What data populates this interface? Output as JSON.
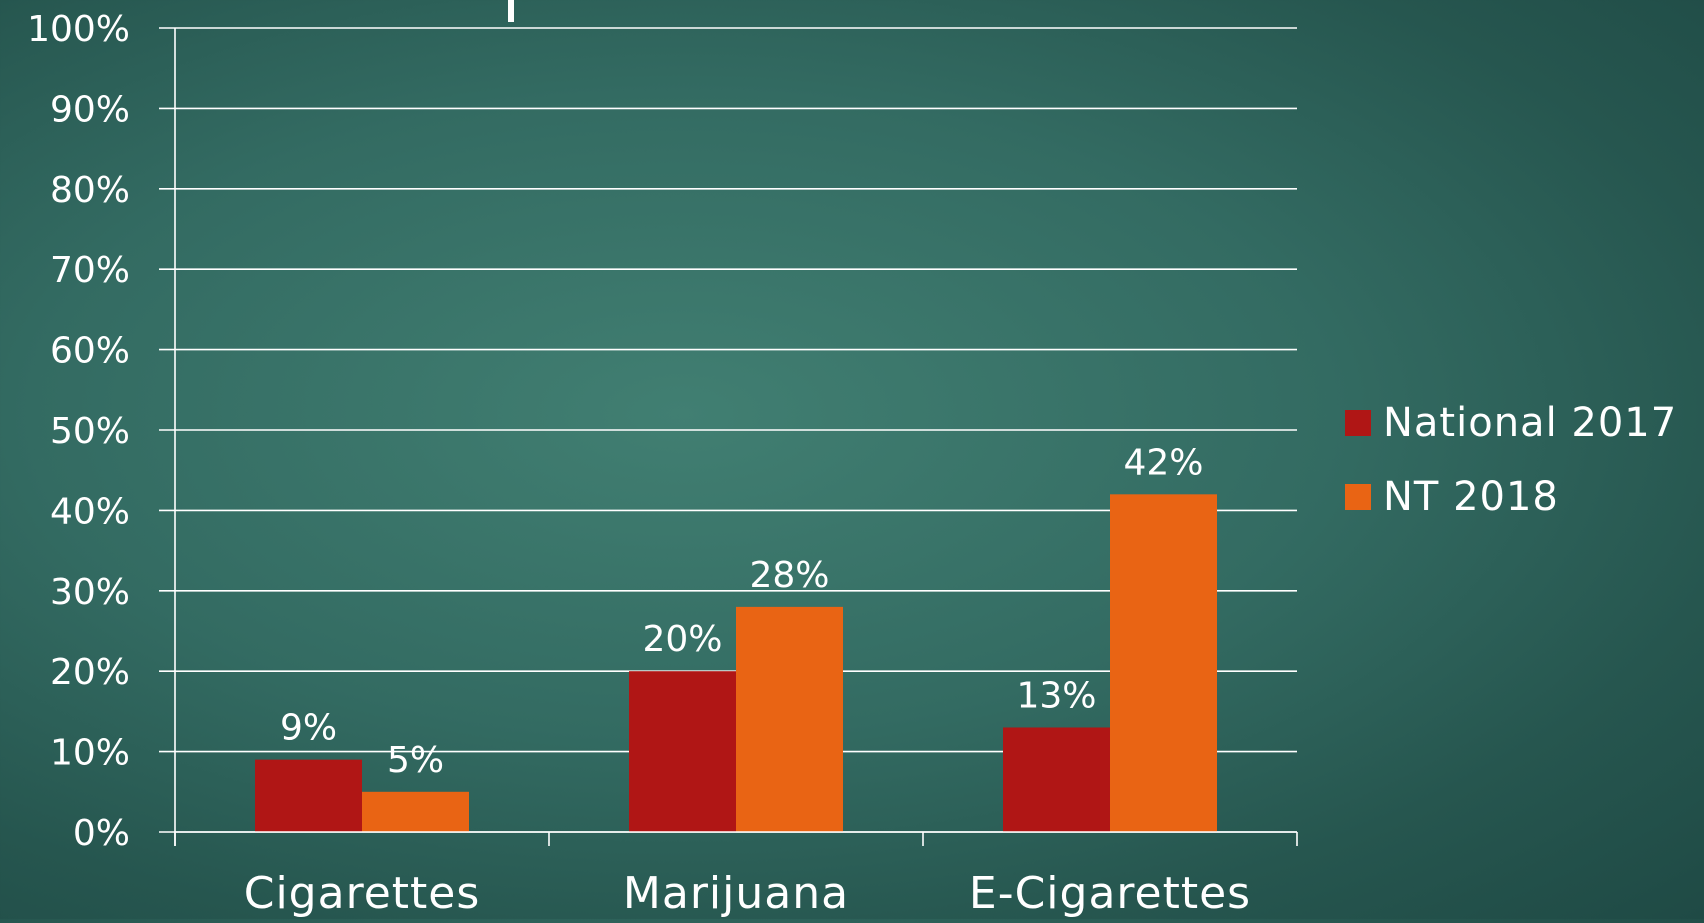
{
  "chart_data": {
    "type": "bar",
    "categories": [
      "Cigarettes",
      "Marijuana",
      "E-Cigarettes"
    ],
    "series": [
      {
        "name": "National 2017",
        "values": [
          9,
          20,
          13
        ],
        "color": "#b01615",
        "labels": [
          "9%",
          "20%",
          "13%"
        ]
      },
      {
        "name": "NT 2018",
        "values": [
          5,
          28,
          42
        ],
        "color": "#e96414",
        "labels": [
          "5%",
          "28%",
          "42%"
        ]
      }
    ],
    "ylim": [
      0,
      100
    ],
    "yticks": [
      0,
      10,
      20,
      30,
      40,
      50,
      60,
      70,
      80,
      90,
      100
    ],
    "ytick_labels": [
      "0%",
      "10%",
      "20%",
      "30%",
      "40%",
      "50%",
      "60%",
      "70%",
      "80%",
      "90%",
      "100%"
    ],
    "grid": true,
    "legend_position": "right",
    "gridline_color": "#ffffff"
  }
}
